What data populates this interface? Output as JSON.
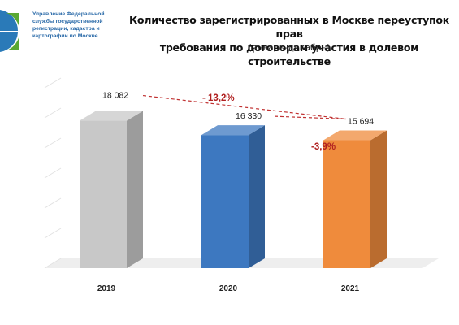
{
  "header": {
    "org_name": "Управление Федеральной\nслужбы государственной\nрегистрации, кадастра и\nкартографии по Москве",
    "title": "Количество зарегистрированных в Москве переуступок прав\nтребования по договорам участия в долевом строительстве",
    "subtitle": "(январь-декабрь)"
  },
  "colors": {
    "logo_blue": "#2a7ab8",
    "logo_green": "#5aa832",
    "bar_2019": "#c8c8c8",
    "bar_2020": "#3d78c0",
    "bar_2021": "#ef8b3c",
    "change_text": "#b02020",
    "trend_line": "#c03030"
  },
  "chart_data": {
    "type": "bar",
    "title": "Количество зарегистрированных в Москве переуступок прав требования по договорам участия в долевом строительстве",
    "subtitle": "(январь-декабрь)",
    "categories": [
      "2019",
      "2020",
      "2021"
    ],
    "values": [
      18082,
      16330,
      15694
    ],
    "value_labels": [
      "18 082",
      "16 330",
      "15 694"
    ],
    "annotations": [
      {
        "text": "- 13,2%",
        "from": "2019",
        "to": "2021"
      },
      {
        "text": "-3,9%",
        "from": "2020",
        "to": "2021"
      }
    ],
    "style": "3d",
    "grid": true,
    "legend": "none"
  }
}
